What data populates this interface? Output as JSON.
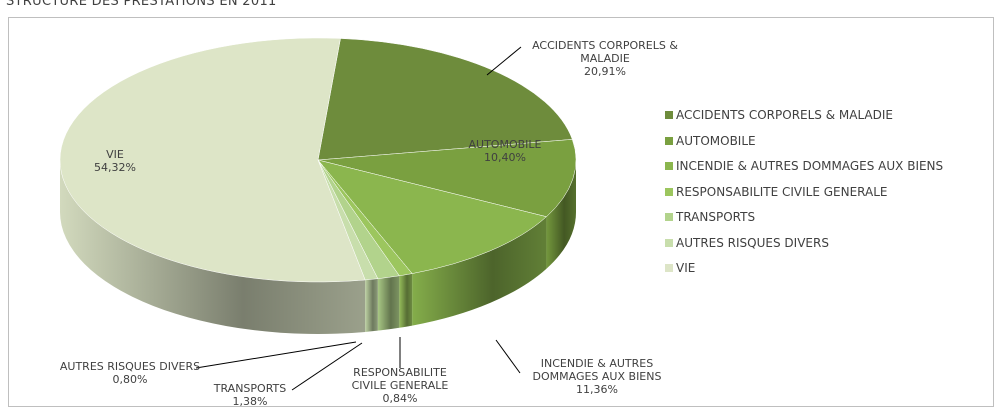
{
  "chart_data": {
    "type": "pie",
    "title": "STRUCTURE DES PRESTATIONS EN 2011",
    "categories": [
      "ACCIDENTS CORPORELS & MALADIE",
      "AUTOMOBILE",
      "INCENDIE & AUTRES DOMMAGES AUX BIENS",
      "RESPONSABILITE CIVILE GENERALE",
      "TRANSPORTS",
      "AUTRES RISQUES DIVERS",
      "VIE"
    ],
    "values": [
      20.91,
      10.4,
      11.36,
      0.84,
      1.38,
      0.8,
      54.32
    ],
    "value_labels": [
      "20,91%",
      "10,40%",
      "11,36%",
      "0,84%",
      "1,38%",
      "0,80%",
      "54,32%"
    ],
    "colors": [
      "#6e8c3c",
      "#7aa040",
      "#8bb64e",
      "#9cc65e",
      "#b2d38c",
      "#c8deac",
      "#dde5c7"
    ],
    "legend": "right"
  }
}
